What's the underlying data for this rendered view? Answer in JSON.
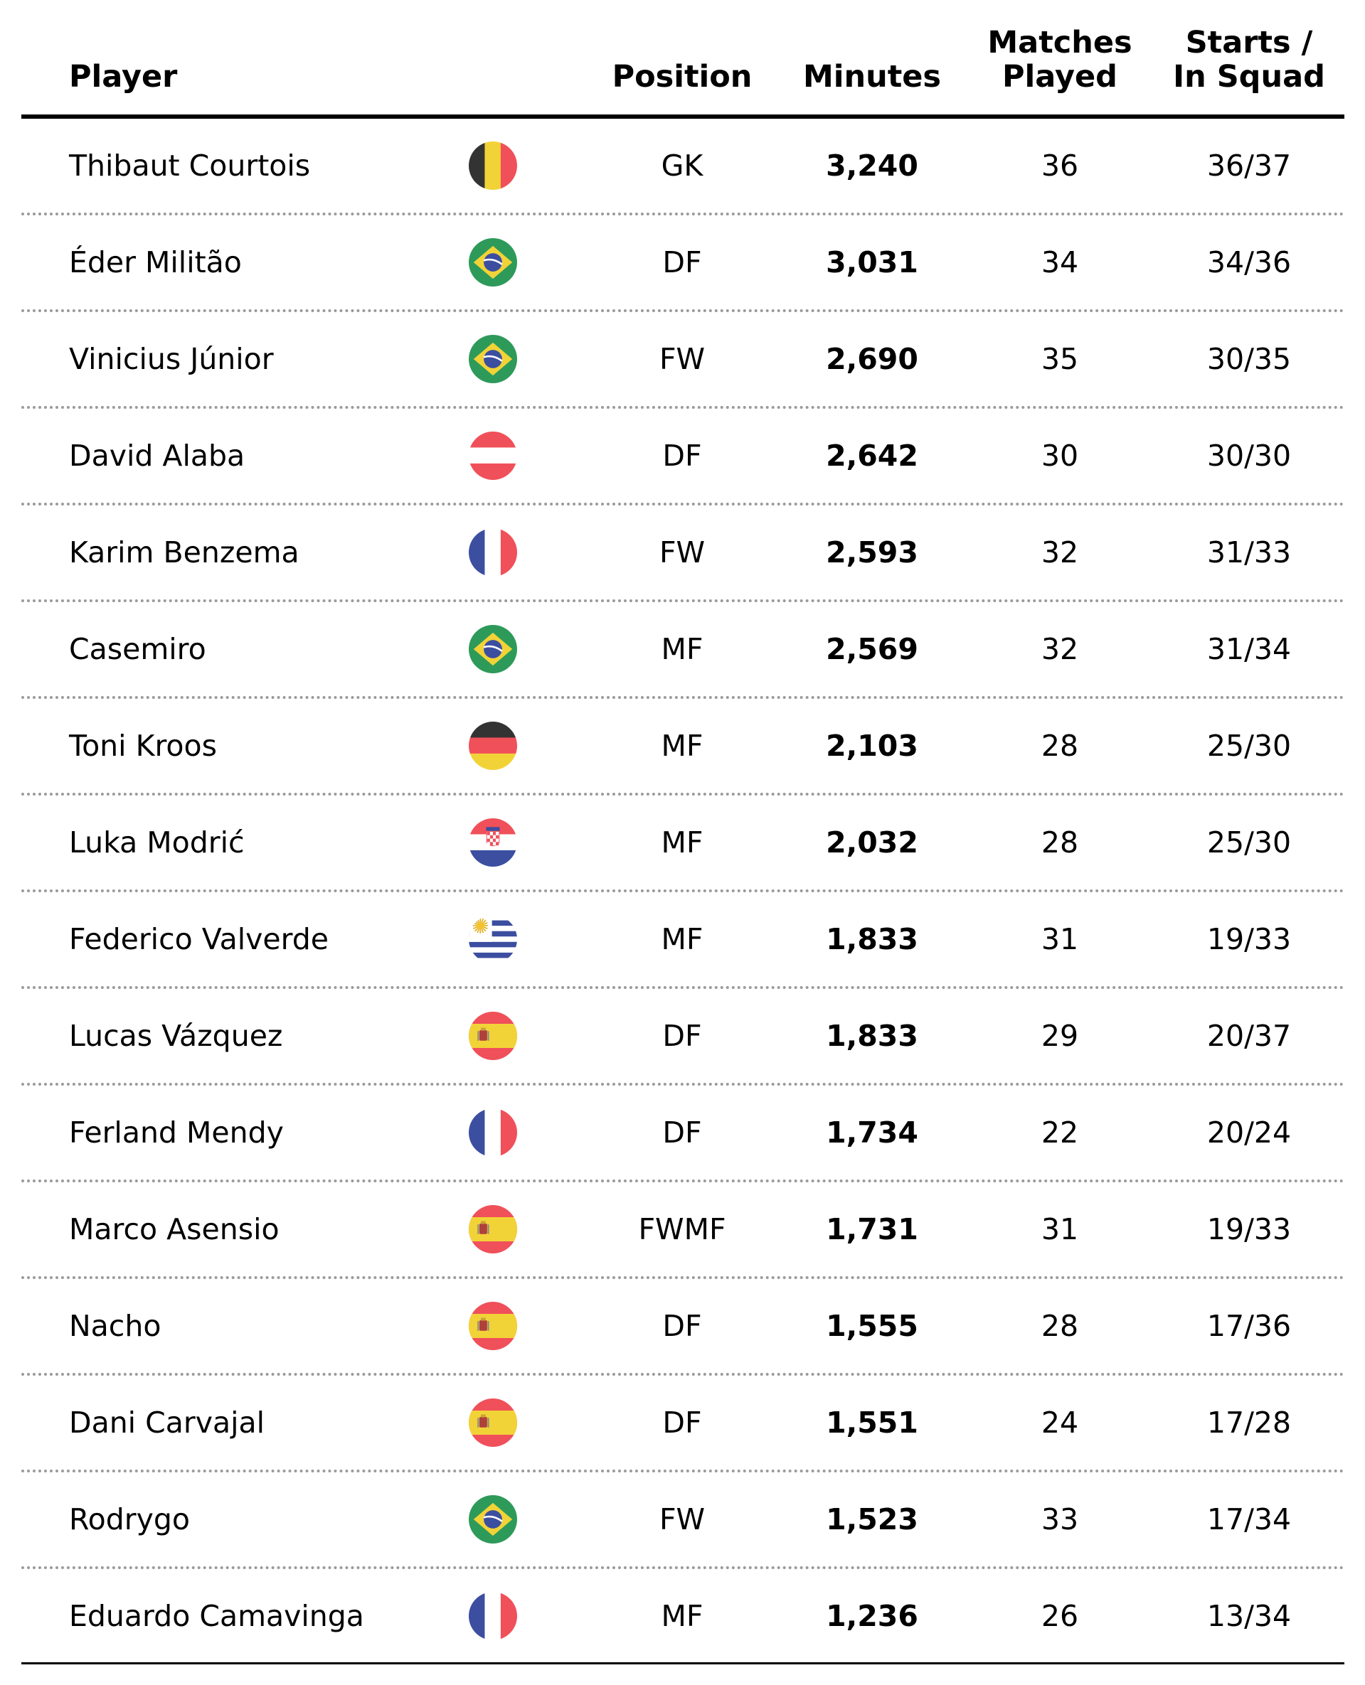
{
  "chart_data": {
    "type": "table",
    "columns": [
      "Player",
      "Position",
      "Minutes",
      "Matches Played",
      "Starts / In Squad"
    ],
    "header": {
      "player": "Player",
      "position": "Position",
      "minutes": "Minutes",
      "matches_l1": "Matches",
      "matches_l2": "Played",
      "starts_l1": "Starts /",
      "starts_l2": "In Squad"
    },
    "rows": [
      {
        "player": "Thibaut Courtois",
        "flag": "belgium-flag",
        "position": "GK",
        "minutes": "3,240",
        "matches": "36",
        "starts": "36/37"
      },
      {
        "player": "Éder Militão",
        "flag": "brazil-flag",
        "position": "DF",
        "minutes": "3,031",
        "matches": "34",
        "starts": "34/36"
      },
      {
        "player": "Vinicius Júnior",
        "flag": "brazil-flag",
        "position": "FW",
        "minutes": "2,690",
        "matches": "35",
        "starts": "30/35"
      },
      {
        "player": "David Alaba",
        "flag": "austria-flag",
        "position": "DF",
        "minutes": "2,642",
        "matches": "30",
        "starts": "30/30"
      },
      {
        "player": "Karim Benzema",
        "flag": "france-flag",
        "position": "FW",
        "minutes": "2,593",
        "matches": "32",
        "starts": "31/33"
      },
      {
        "player": "Casemiro",
        "flag": "brazil-flag",
        "position": "MF",
        "minutes": "2,569",
        "matches": "32",
        "starts": "31/34"
      },
      {
        "player": "Toni Kroos",
        "flag": "germany-flag",
        "position": "MF",
        "minutes": "2,103",
        "matches": "28",
        "starts": "25/30"
      },
      {
        "player": "Luka Modrić",
        "flag": "croatia-flag",
        "position": "MF",
        "minutes": "2,032",
        "matches": "28",
        "starts": "25/30"
      },
      {
        "player": "Federico Valverde",
        "flag": "uruguay-flag",
        "position": "MF",
        "minutes": "1,833",
        "matches": "31",
        "starts": "19/33"
      },
      {
        "player": "Lucas Vázquez",
        "flag": "spain-flag",
        "position": "DF",
        "minutes": "1,833",
        "matches": "29",
        "starts": "20/37"
      },
      {
        "player": "Ferland Mendy",
        "flag": "france-flag",
        "position": "DF",
        "minutes": "1,734",
        "matches": "22",
        "starts": "20/24"
      },
      {
        "player": "Marco Asensio",
        "flag": "spain-flag",
        "position": "FWMF",
        "minutes": "1,731",
        "matches": "31",
        "starts": "19/33"
      },
      {
        "player": "Nacho",
        "flag": "spain-flag",
        "position": "DF",
        "minutes": "1,555",
        "matches": "28",
        "starts": "17/36"
      },
      {
        "player": "Dani Carvajal",
        "flag": "spain-flag",
        "position": "DF",
        "minutes": "1,551",
        "matches": "24",
        "starts": "17/28"
      },
      {
        "player": "Rodrygo",
        "flag": "brazil-flag",
        "position": "FW",
        "minutes": "1,523",
        "matches": "33",
        "starts": "17/34"
      },
      {
        "player": "Eduardo Camavinga",
        "flag": "france-flag",
        "position": "MF",
        "minutes": "1,236",
        "matches": "26",
        "starts": "13/34"
      }
    ]
  },
  "colors": {
    "text": "#000000",
    "separator": "#9a9a9a",
    "flag_red": "#f0505a",
    "flag_black": "#333333",
    "flag_yellow": "#f2d337",
    "flag_green": "#2e9a5a",
    "flag_blue": "#3b4ea0",
    "flag_white": "#ffffff"
  }
}
